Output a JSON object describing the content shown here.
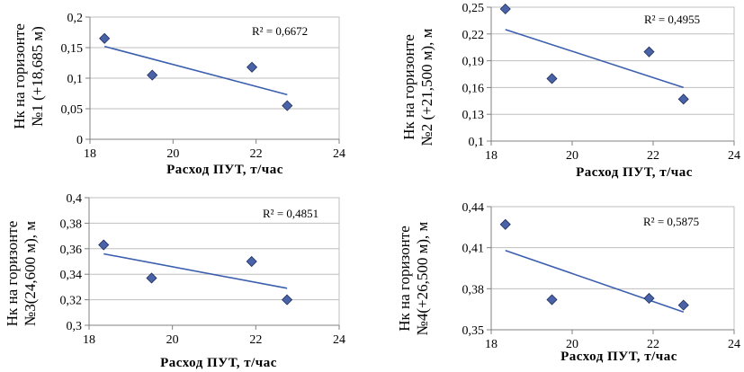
{
  "chart_data": [
    {
      "type": "scatter",
      "ylabel_line1": "Нк на горизонте",
      "ylabel_line2": "№1 (+18,685 м)",
      "xlabel": "Расход ПУТ, т/час",
      "r2": "R² = 0,6672",
      "xlim": [
        18,
        24
      ],
      "ylim": [
        0,
        0.2
      ],
      "xticks": [
        18,
        20,
        22,
        24
      ],
      "xtick_labels": [
        "18",
        "20",
        "22",
        "24"
      ],
      "yticks": [
        0,
        0.05,
        0.1,
        0.15,
        0.2
      ],
      "ytick_labels": [
        "0",
        "0,05",
        "0,1",
        "0,15",
        "0,2"
      ],
      "points": [
        {
          "x": 18.35,
          "y": 0.165
        },
        {
          "x": 19.5,
          "y": 0.105
        },
        {
          "x": 21.9,
          "y": 0.118
        },
        {
          "x": 22.75,
          "y": 0.055
        }
      ],
      "trend": [
        {
          "x": 18.35,
          "y": 0.152
        },
        {
          "x": 22.75,
          "y": 0.073
        }
      ],
      "grid": true
    },
    {
      "type": "scatter",
      "ylabel_line1": "Нк на горизонте",
      "ylabel_line2": "№2  (+21,500 м), м",
      "xlabel": "Расход ПУТ, т/час",
      "r2": "R² = 0,4955",
      "xlim": [
        18,
        24
      ],
      "ylim": [
        0.1,
        0.25
      ],
      "xticks": [
        18,
        20,
        22,
        24
      ],
      "xtick_labels": [
        "18",
        "20",
        "22",
        "24"
      ],
      "yticks": [
        0.1,
        0.13,
        0.16,
        0.19,
        0.22,
        0.25
      ],
      "ytick_labels": [
        "0,1",
        "0,13",
        "0,16",
        "0,19",
        "0,22",
        "0,25"
      ],
      "points": [
        {
          "x": 18.35,
          "y": 0.248
        },
        {
          "x": 19.5,
          "y": 0.17
        },
        {
          "x": 21.9,
          "y": 0.2
        },
        {
          "x": 22.75,
          "y": 0.147
        }
      ],
      "trend": [
        {
          "x": 18.35,
          "y": 0.225
        },
        {
          "x": 22.75,
          "y": 0.16
        }
      ],
      "grid": true
    },
    {
      "type": "scatter",
      "ylabel_line1": "Нк на горизонте",
      "ylabel_line2": "№3(24,600 м), м",
      "xlabel": "Расход ПУТ, т/час",
      "r2": "R² = 0,4851",
      "xlim": [
        18,
        24
      ],
      "ylim": [
        0.3,
        0.4
      ],
      "xticks": [
        18,
        20,
        22,
        24
      ],
      "xtick_labels": [
        "18",
        "20",
        "22",
        "24"
      ],
      "yticks": [
        0.3,
        0.32,
        0.34,
        0.36,
        0.38,
        0.4
      ],
      "ytick_labels": [
        "0,3",
        "0,32",
        "0,34",
        "0,36",
        "0,38",
        "0,4"
      ],
      "points": [
        {
          "x": 18.35,
          "y": 0.363
        },
        {
          "x": 19.5,
          "y": 0.337
        },
        {
          "x": 21.9,
          "y": 0.35
        },
        {
          "x": 22.75,
          "y": 0.32
        }
      ],
      "trend": [
        {
          "x": 18.35,
          "y": 0.356
        },
        {
          "x": 22.75,
          "y": 0.329
        }
      ],
      "grid": true
    },
    {
      "type": "scatter",
      "ylabel_line1": "Нк на горизонте",
      "ylabel_line2": "№4(+26,500 м), м",
      "xlabel": "Расход ПУТ, т/час",
      "r2": "R² = 0,5875",
      "xlim": [
        18,
        24
      ],
      "ylim": [
        0.35,
        0.44
      ],
      "xticks": [
        18,
        20,
        22,
        24
      ],
      "xtick_labels": [
        "18",
        "20",
        "22",
        "24"
      ],
      "yticks": [
        0.35,
        0.38,
        0.41,
        0.44
      ],
      "ytick_labels": [
        "0,35",
        "0,38",
        "0,41",
        "0,44"
      ],
      "points": [
        {
          "x": 18.35,
          "y": 0.427
        },
        {
          "x": 19.5,
          "y": 0.372
        },
        {
          "x": 21.9,
          "y": 0.373
        },
        {
          "x": 22.75,
          "y": 0.368
        }
      ],
      "trend": [
        {
          "x": 18.35,
          "y": 0.408
        },
        {
          "x": 22.75,
          "y": 0.363
        }
      ],
      "grid": true
    }
  ],
  "style": {
    "marker_fill": "#4a63a8",
    "marker_stroke": "#1f2f5c",
    "trend_color": "#3b5fae",
    "grid_color": "#bfbfbf",
    "axis_color": "#808080"
  }
}
